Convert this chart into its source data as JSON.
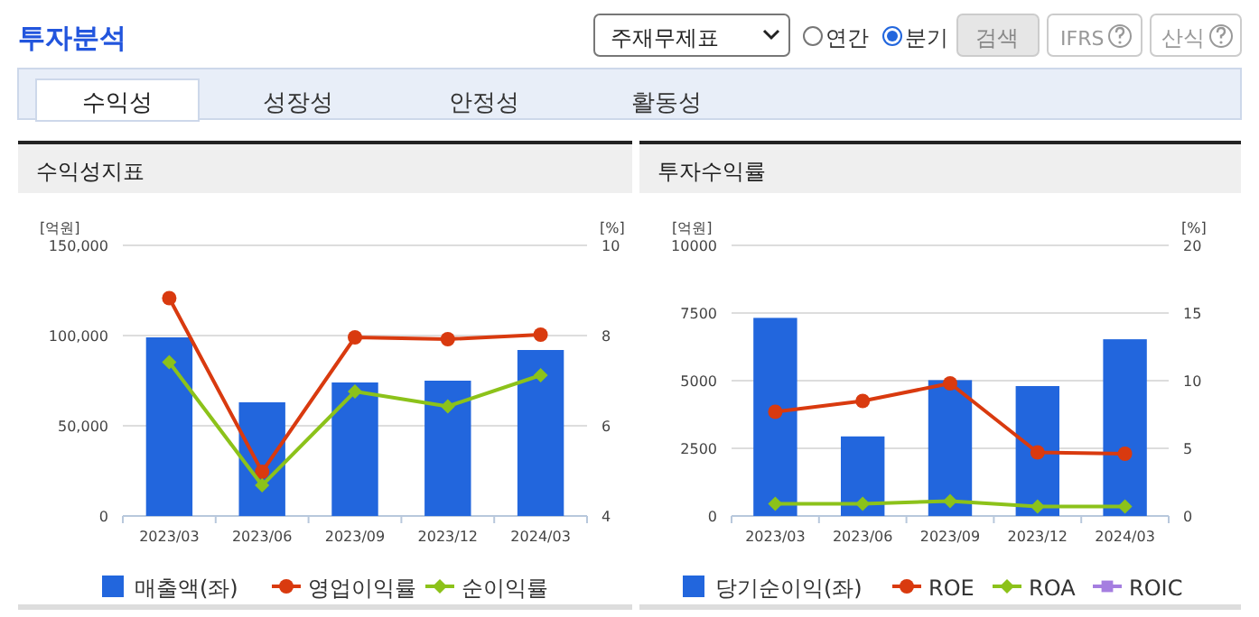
{
  "chart_data": [
    {
      "type": "bar",
      "title": "수익성지표",
      "ylabel": "[억원]",
      "y2label": "[%]",
      "annotations": [
        "투자분석",
        "주재무제표",
        "연간",
        "분기",
        "검색",
        "IFRS",
        "산식",
        "수익성",
        "성장성",
        "안정성",
        "활동성"
      ],
      "categories": [
        "2023/03",
        "2023/06",
        "2023/09",
        "2023/12",
        "2024/03"
      ],
      "ylim": [
        0,
        150000
      ],
      "yticks": [
        {
          "value": 0,
          "label": "0"
        },
        {
          "value": 50000,
          "label": "50,000"
        },
        {
          "value": 100000,
          "label": "100,000"
        },
        {
          "value": 150000,
          "label": "150,000"
        }
      ],
      "y2lim": [
        4,
        10
      ],
      "y2ticks": [
        4,
        6,
        8,
        10
      ],
      "grid": "y",
      "legend": "bottom",
      "series": [
        {
          "name": "매출액(좌)",
          "color": "#2266dd",
          "values": [
            99000,
            63000,
            74000,
            75000,
            92000
          ]
        },
        {
          "name": "영업이익률",
          "type": "line",
          "axis": "y2",
          "marker": "circle",
          "color": "#d93a0f",
          "values": [
            8.83,
            4.98,
            7.96,
            7.92,
            8.02
          ]
        },
        {
          "name": "순이익률",
          "type": "line",
          "axis": "y2",
          "marker": "diamond",
          "color": "#8cc21a",
          "values": [
            7.41,
            4.68,
            6.76,
            6.43,
            7.12
          ]
        }
      ]
    },
    {
      "type": "bar",
      "title": "투자수익률",
      "ylabel": "[억원]",
      "y2label": "[%]",
      "categories": [
        "2023/03",
        "2023/06",
        "2023/09",
        "2023/12",
        "2024/03"
      ],
      "ylim": [
        0,
        10000
      ],
      "yticks": [
        0,
        2500,
        5000,
        7500,
        10000
      ],
      "y2lim": [
        0,
        20
      ],
      "y2ticks": [
        0,
        5,
        10,
        15,
        20
      ],
      "grid": "y",
      "legend": "bottom",
      "series": [
        {
          "name": "당기순이익(좌)",
          "color": "#2266dd",
          "values": [
            7320,
            2940,
            5020,
            4800,
            6530
          ]
        },
        {
          "name": "ROE",
          "type": "line",
          "axis": "y2",
          "marker": "circle",
          "color": "#d93a0f",
          "values": [
            7.7,
            8.5,
            9.8,
            4.7,
            4.6
          ]
        },
        {
          "name": "ROA",
          "type": "line",
          "axis": "y2",
          "marker": "diamond",
          "color": "#8cc21a",
          "values": [
            0.9,
            0.9,
            1.1,
            0.7,
            0.7
          ]
        },
        {
          "name": "ROIC",
          "type": "line",
          "axis": "y2",
          "marker": "square",
          "color": "#a57ee0",
          "values": [
            null,
            null,
            null,
            null,
            null
          ]
        }
      ]
    }
  ]
}
